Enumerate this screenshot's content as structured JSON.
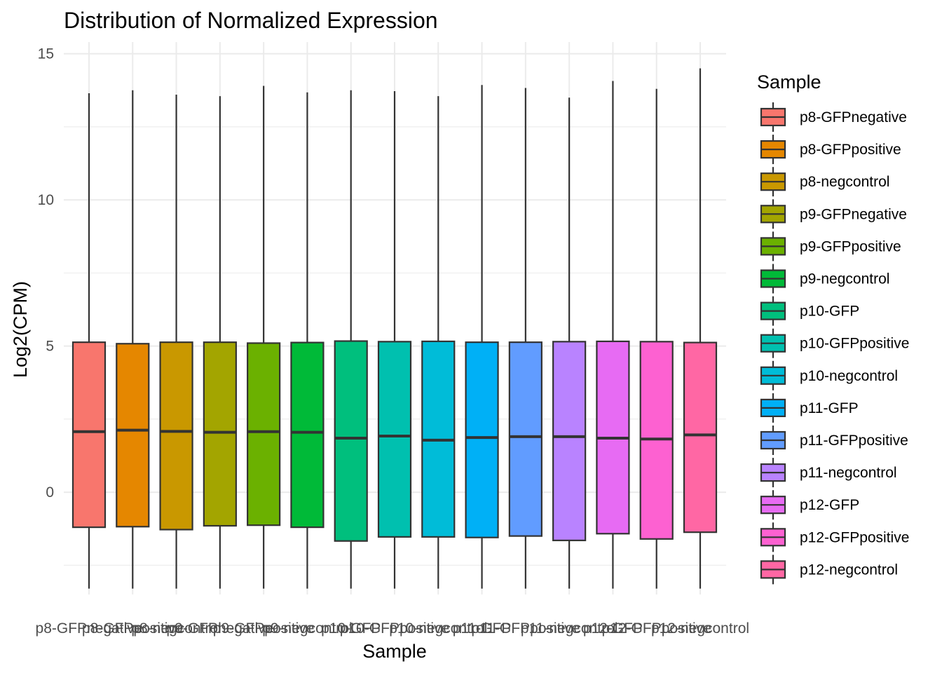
{
  "chart_data": {
    "type": "boxplot",
    "title": "Distribution of Normalized Expression",
    "xlabel": "Sample",
    "ylabel": "Log2(CPM)",
    "ylim": [
      -3.5,
      15.4
    ],
    "y_ticks": [
      0,
      5,
      10,
      15
    ],
    "grid": true,
    "legend": {
      "title": "Sample",
      "position": "right"
    },
    "categories": [
      "p8-GFPnegative",
      "p8-GFPpositive",
      "p8-negcontrol",
      "p9-GFPnegative",
      "p9-GFPpositive",
      "p9-negcontrol",
      "p10-GFP",
      "p10-GFPpositive",
      "p10-negcontrol",
      "p11-GFP",
      "p11-GFPpositive",
      "p11-negcontrol",
      "p12-GFP",
      "p12-GFPpositive",
      "p12-negcontrol"
    ],
    "boxes": [
      {
        "name": "p8-GFPnegative",
        "min": -3.3,
        "q1": -1.2,
        "median": 2.07,
        "q3": 5.13,
        "max": 13.65
      },
      {
        "name": "p8-GFPpositive",
        "min": -3.3,
        "q1": -1.18,
        "median": 2.12,
        "q3": 5.08,
        "max": 13.75
      },
      {
        "name": "p8-negcontrol",
        "min": -3.3,
        "q1": -1.28,
        "median": 2.08,
        "q3": 5.13,
        "max": 13.6
      },
      {
        "name": "p9-GFPnegative",
        "min": -3.3,
        "q1": -1.15,
        "median": 2.05,
        "q3": 5.13,
        "max": 13.55
      },
      {
        "name": "p9-GFPpositive",
        "min": -3.3,
        "q1": -1.13,
        "median": 2.07,
        "q3": 5.1,
        "max": 13.9
      },
      {
        "name": "p9-negcontrol",
        "min": -3.3,
        "q1": -1.2,
        "median": 2.05,
        "q3": 5.12,
        "max": 13.68
      },
      {
        "name": "p10-GFP",
        "min": -3.3,
        "q1": -1.67,
        "median": 1.85,
        "q3": 5.17,
        "max": 13.75
      },
      {
        "name": "p10-GFPpositive",
        "min": -3.3,
        "q1": -1.53,
        "median": 1.92,
        "q3": 5.15,
        "max": 13.72
      },
      {
        "name": "p10-negcontrol",
        "min": -3.3,
        "q1": -1.53,
        "median": 1.78,
        "q3": 5.16,
        "max": 13.55
      },
      {
        "name": "p11-GFP",
        "min": -3.3,
        "q1": -1.55,
        "median": 1.87,
        "q3": 5.13,
        "max": 13.93
      },
      {
        "name": "p11-GFPpositive",
        "min": -3.3,
        "q1": -1.5,
        "median": 1.9,
        "q3": 5.13,
        "max": 13.83
      },
      {
        "name": "p11-negcontrol",
        "min": -3.3,
        "q1": -1.65,
        "median": 1.9,
        "q3": 5.15,
        "max": 13.5
      },
      {
        "name": "p12-GFP",
        "min": -3.3,
        "q1": -1.42,
        "median": 1.85,
        "q3": 5.16,
        "max": 14.07
      },
      {
        "name": "p12-GFPpositive",
        "min": -3.3,
        "q1": -1.6,
        "median": 1.82,
        "q3": 5.15,
        "max": 13.8
      },
      {
        "name": "p12-negcontrol",
        "min": -3.3,
        "q1": -1.37,
        "median": 1.96,
        "q3": 5.12,
        "max": 14.5
      }
    ],
    "colors": [
      "#F8766D",
      "#E58700",
      "#C99800",
      "#A3A500",
      "#6BB100",
      "#00BA38",
      "#00BF7D",
      "#00C0AF",
      "#00BCD8",
      "#00B0F6",
      "#619CFF",
      "#B983FF",
      "#E76BF3",
      "#FD61D1",
      "#FF67A4"
    ]
  }
}
